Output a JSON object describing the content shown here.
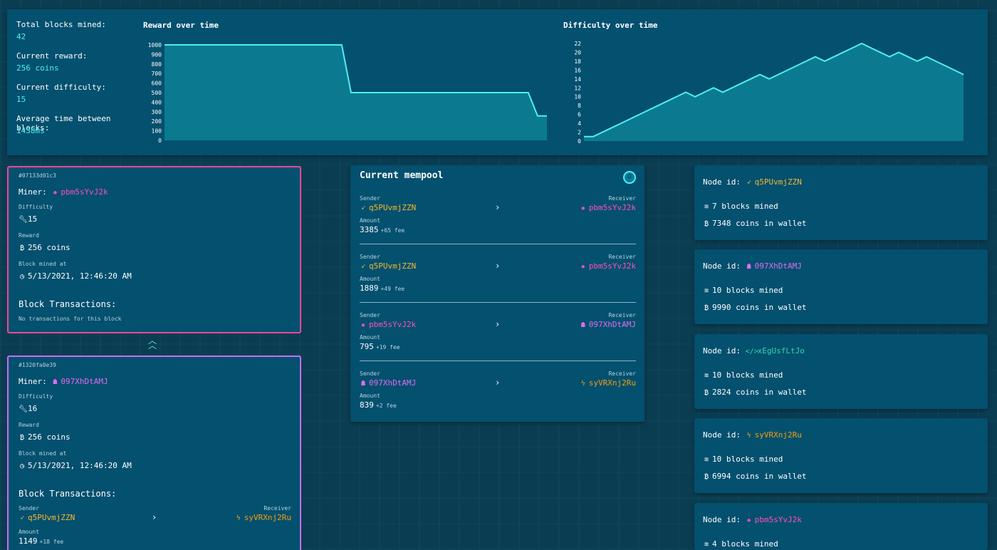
{
  "stats": {
    "total_blocks_label": "Total blocks mined:",
    "total_blocks_value": "42",
    "current_reward_label": "Current reward:",
    "current_reward_value": "256 coins",
    "current_difficulty_label": "Current difficulty:",
    "current_difficulty_value": "15",
    "avg_time_label": "Average time between blocks:",
    "avg_time_value": "1438ms"
  },
  "chart_data": [
    {
      "type": "area",
      "title": "Reward over time",
      "x": [
        0,
        1,
        2,
        3,
        4,
        5,
        6,
        7,
        8,
        9,
        10,
        11,
        12,
        13,
        14,
        15,
        16,
        17,
        18,
        19,
        20,
        21,
        22,
        23,
        24,
        25,
        26,
        27,
        28,
        29,
        30,
        31,
        32,
        33,
        34,
        35,
        36,
        37,
        38,
        39,
        40,
        41
      ],
      "values": [
        1000,
        1000,
        1000,
        1000,
        1000,
        1000,
        1000,
        1000,
        1000,
        1000,
        1000,
        1000,
        1000,
        1000,
        1000,
        1000,
        1000,
        1000,
        1000,
        1000,
        500,
        500,
        500,
        500,
        500,
        500,
        500,
        500,
        500,
        500,
        500,
        500,
        500,
        500,
        500,
        500,
        500,
        500,
        500,
        500,
        256,
        256
      ],
      "ylim": [
        0,
        1000
      ],
      "yticks": [
        0,
        100,
        200,
        300,
        400,
        500,
        600,
        700,
        800,
        900,
        1000
      ],
      "accent": "#4ff0ee"
    },
    {
      "type": "area",
      "title": "Difficulty over time",
      "x": [
        0,
        1,
        2,
        3,
        4,
        5,
        6,
        7,
        8,
        9,
        10,
        11,
        12,
        13,
        14,
        15,
        16,
        17,
        18,
        19,
        20,
        21,
        22,
        23,
        24,
        25,
        26,
        27,
        28,
        29,
        30,
        31,
        32,
        33,
        34,
        35,
        36,
        37,
        38,
        39,
        40,
        41
      ],
      "values": [
        1,
        1,
        2,
        3,
        4,
        5,
        6,
        7,
        8,
        9,
        10,
        11,
        10,
        11,
        12,
        11,
        12,
        13,
        14,
        15,
        14,
        15,
        16,
        17,
        18,
        19,
        18,
        19,
        20,
        21,
        22,
        21,
        20,
        19,
        20,
        19,
        18,
        19,
        18,
        17,
        16,
        15
      ],
      "ylim": [
        0,
        22
      ],
      "yticks": [
        0,
        2,
        4,
        6,
        8,
        10,
        12,
        14,
        16,
        18,
        20,
        22
      ],
      "accent": "#4ff0ee"
    }
  ],
  "blocks": [
    {
      "hash": "#07133d01c3",
      "miner_label": "Miner:",
      "miner": "pbm5sYvJ2k",
      "difficulty_label": "Difficulty",
      "difficulty": "15",
      "reward_label": "Reward",
      "reward": "256 coins",
      "mined_label": "Block mined at",
      "mined_at": "5/13/2021, 12:46:20 AM",
      "tx_heading": "Block Transactions:",
      "tx_empty": "No transactions for this block"
    },
    {
      "hash": "#1320fa0e39",
      "miner_label": "Miner:",
      "miner": "097XhDtAMJ",
      "difficulty_label": "Difficulty",
      "difficulty": "16",
      "reward_label": "Reward",
      "reward": "256 coins",
      "mined_label": "Block mined at",
      "mined_at": "5/13/2021, 12:46:20 AM",
      "tx_heading": "Block Transactions:",
      "tx": {
        "sender_label": "Sender",
        "sender": "q5PUvmjZZN",
        "receiver_label": "Receiver",
        "receiver": "syVRXnj2Ru",
        "amount_label": "Amount",
        "amount": "1149",
        "fee": "+18 fee"
      }
    }
  ],
  "mempool": {
    "title": "Current mempool",
    "badge": "O",
    "sender_label": "Sender",
    "receiver_label": "Receiver",
    "amount_label": "Amount",
    "transactions": [
      {
        "sender": "q5PUvmjZZN",
        "receiver": "pbm5sYvJ2k",
        "amount": "3385",
        "fee": "+65 fee"
      },
      {
        "sender": "q5PUvmjZZN",
        "receiver": "pbm5sYvJ2k",
        "amount": "1889",
        "fee": "+49 fee"
      },
      {
        "sender": "pbm5sYvJ2k",
        "receiver": "097XhDtAMJ",
        "amount": "795",
        "fee": "+19 fee"
      },
      {
        "sender": "097XhDtAMJ",
        "receiver": "syVRXnj2Ru",
        "amount": "839",
        "fee": "+2 fee"
      }
    ]
  },
  "nodes": [
    {
      "label": "Node id:",
      "id": "q5PUvmjZZN",
      "blocks": "7 blocks mined",
      "coins": "7348 coins in wallet"
    },
    {
      "label": "Node id:",
      "id": "097XhDtAMJ",
      "blocks": "10 blocks mined",
      "coins": "9990 coins in wallet"
    },
    {
      "label": "Node id:",
      "id": "xEgUsfLtJo",
      "blocks": "10 blocks mined",
      "coins": "2824 coins in wallet"
    },
    {
      "label": "Node id:",
      "id": "syVRXnj2Ru",
      "blocks": "10 blocks mined",
      "coins": "6994 coins in wallet"
    },
    {
      "label": "Node id:",
      "id": "pbm5sYvJ2k",
      "blocks": "4 blocks mined",
      "coins": ""
    }
  ],
  "colors": {
    "background": "#0b3d52",
    "panel": "#03506f",
    "accent": "#4ff0ee",
    "pink": "#ff4fb8",
    "violet": "#e06cf0",
    "yellow": "#f5b92e",
    "orange": "#f59e0b",
    "green": "#2ed9a8"
  }
}
